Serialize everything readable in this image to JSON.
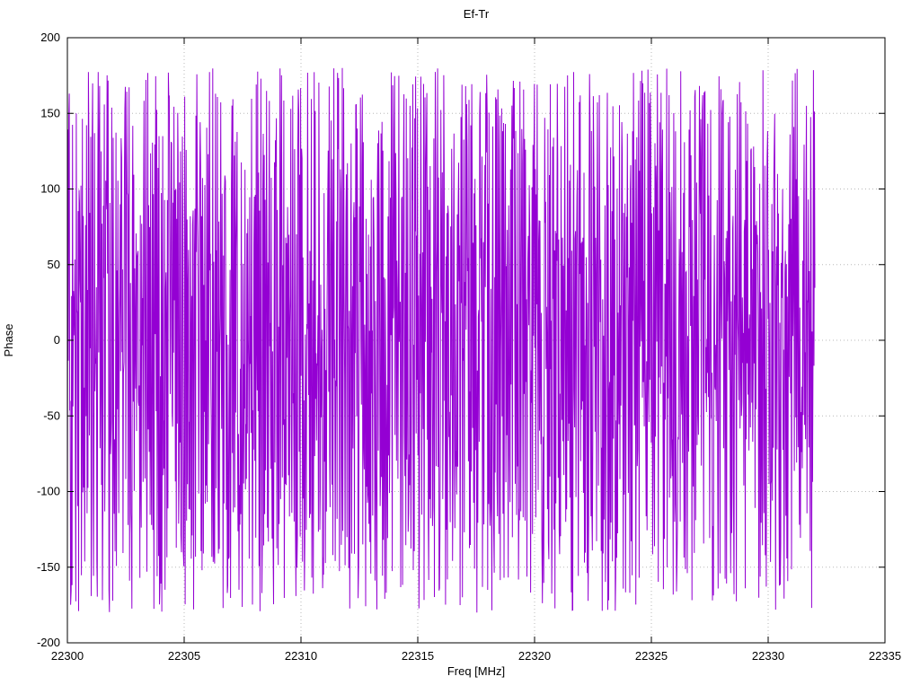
{
  "chart_data": {
    "type": "line",
    "title": "Ef-Tr",
    "xlabel": "Freq [MHz]",
    "ylabel": "Phase",
    "xlim": [
      22300,
      22335
    ],
    "ylim": [
      -200,
      200
    ],
    "xticks": [
      22300,
      22305,
      22310,
      22315,
      22320,
      22325,
      22330,
      22335
    ],
    "yticks": [
      -200,
      -150,
      -100,
      -50,
      0,
      50,
      100,
      150,
      200
    ],
    "grid": true,
    "grid_style": "dotted",
    "grid_color": "#b8b8b8",
    "border_color": "#000000",
    "legend": "none",
    "series": [
      {
        "name": "phase",
        "color": "#9400d3",
        "x_start": 22300,
        "x_end": 22332,
        "n_points": 1600,
        "y_wrap_min": -180,
        "y_wrap_max": 180,
        "generator": "seeded-random-walk-wrapped",
        "seed": 1337,
        "step_scale": 260
      }
    ]
  }
}
